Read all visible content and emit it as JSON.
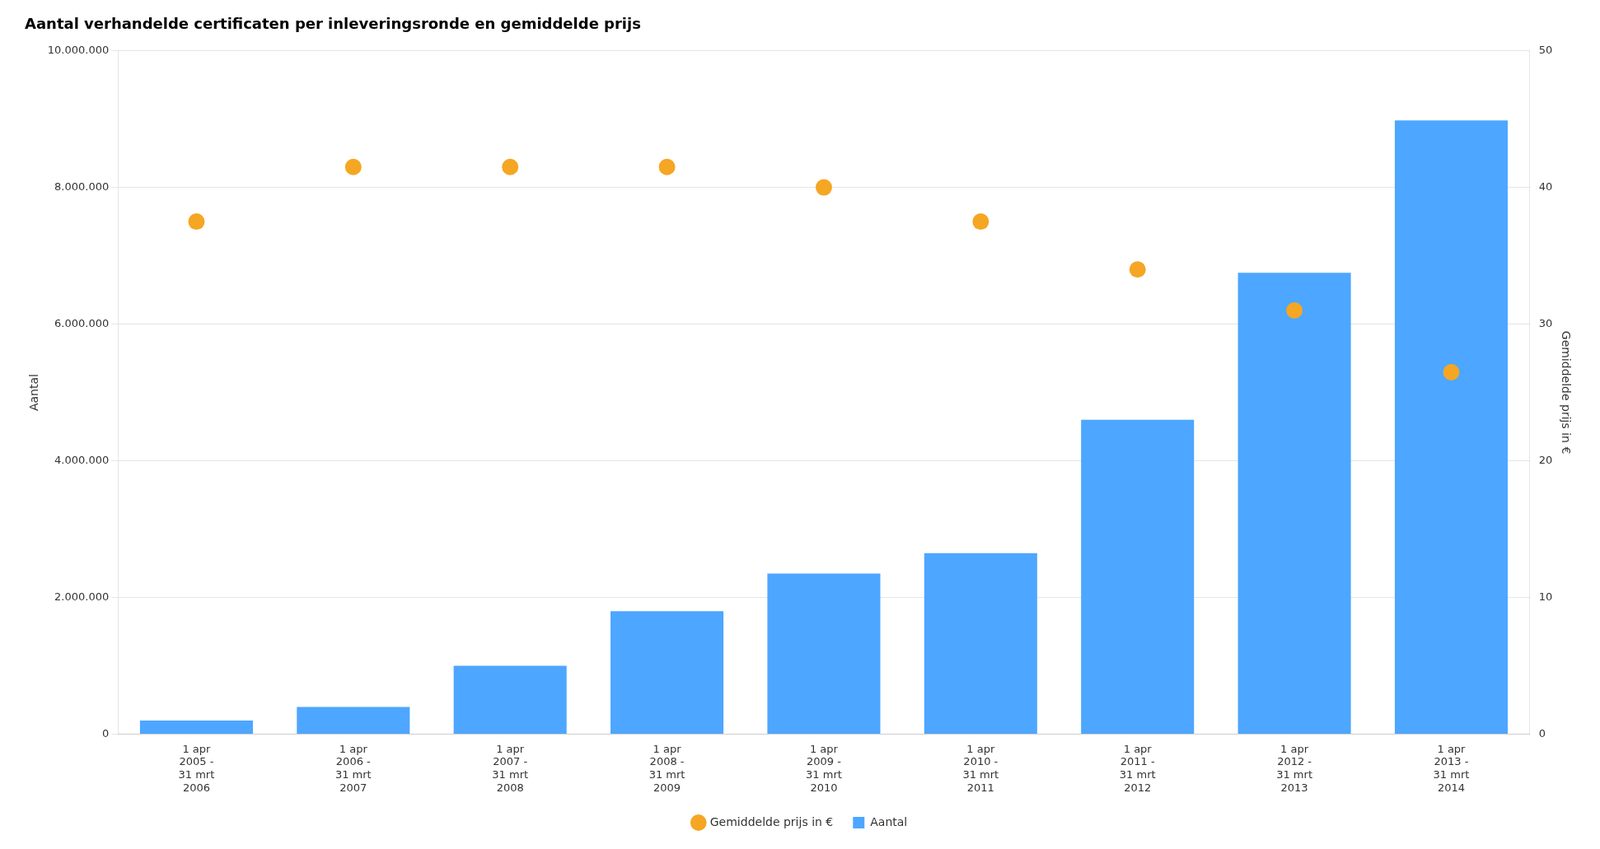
{
  "chart_data": {
    "type": "bar",
    "title": "Aantal verhandelde certificaten per inleveringsronde en gemiddelde prijs",
    "categories": [
      "1 apr\n2005 -\n31 mrt\n2006",
      "1 apr\n2006 -\n31 mrt\n2007",
      "1 apr\n2007 -\n31 mrt\n2008",
      "1 apr\n2008 -\n31 mrt\n2009",
      "1 apr\n2009 -\n31 mrt\n2010",
      "1 apr\n2010 -\n31 mrt\n2011",
      "1 apr\n2011 -\n31 mrt\n2012",
      "1 apr\n2012 -\n31 mrt\n2013",
      "1 apr\n2013 -\n31 mrt\n2014"
    ],
    "series": [
      {
        "name": "Aantal",
        "color": "#4da6ff",
        "values": [
          200000,
          400000,
          1000000,
          1800000,
          2350000,
          2650000,
          4600000,
          6750000,
          8978713
        ]
      },
      {
        "name": "Gemiddelde prijs in €",
        "color": "#f5a623",
        "type": "scatter",
        "marker": "circle",
        "axis": "y2",
        "values": [
          37.5,
          41.5,
          41.5,
          41.5,
          40.0,
          37.5,
          34.0,
          31.0,
          26.48
        ]
      }
    ],
    "ylabel": "Aantal",
    "y2label": "Gemiddelde prijs in €",
    "ylim": [
      0,
      10000000
    ],
    "yticks": [
      0,
      {
        "value": 2000000,
        "label": "2.000.000"
      },
      {
        "value": 4000000,
        "label": "4.000.000"
      },
      {
        "value": 6000000,
        "label": "6.000.000"
      },
      {
        "value": 8000000,
        "label": "8.000.000"
      },
      {
        "value": 10000000,
        "label": "10.000.000"
      }
    ],
    "y2lim": [
      0,
      50
    ],
    "y2ticks": [
      0,
      10,
      20,
      30,
      40,
      50
    ],
    "grid": true,
    "legend": "bottom"
  }
}
